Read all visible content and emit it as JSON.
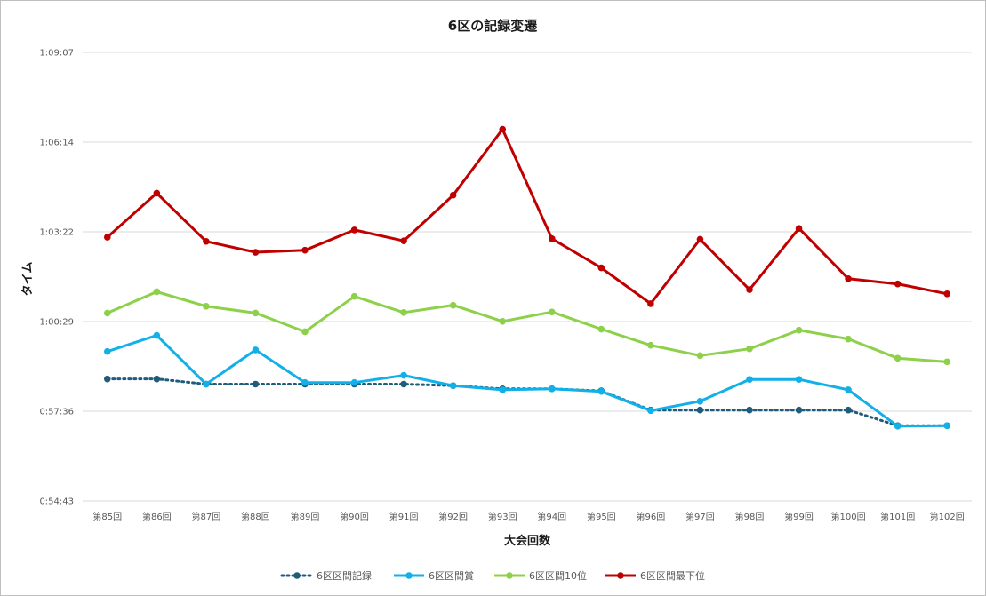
{
  "chart_data": {
    "type": "line",
    "title": "6区の記録変遷",
    "xlabel": "大会回数",
    "ylabel": "タイム",
    "categories": [
      "第85回",
      "第86回",
      "第87回",
      "第88回",
      "第89回",
      "第90回",
      "第91回",
      "第92回",
      "第93回",
      "第94回",
      "第95回",
      "第96回",
      "第97回",
      "第98回",
      "第99回",
      "第100回",
      "第101回",
      "第102回"
    ],
    "y_ticks": [
      "0:54:43",
      "0:57:36",
      "1:00:29",
      "1:03:22",
      "1:06:14",
      "1:09:07"
    ],
    "ylim_seconds": [
      3283,
      4147
    ],
    "grid": true,
    "legend_position": "bottom",
    "series": [
      {
        "name": "6区区間記録",
        "color": "#1f5c7a",
        "style": "dotted",
        "values": [
          3518,
          3518,
          3508,
          3508,
          3508,
          3508,
          3508,
          3505,
          3499,
          3499,
          3495,
          3458,
          3458,
          3458,
          3458,
          3458,
          3428,
          3428
        ]
      },
      {
        "name": "6区区間賞",
        "color": "#12b0e8",
        "style": "solid",
        "values": [
          3571,
          3602,
          3508,
          3574,
          3511,
          3511,
          3525,
          3505,
          3497,
          3499,
          3494,
          3457,
          3475,
          3517,
          3517,
          3497,
          3427,
          3428
        ]
      },
      {
        "name": "6区区間10位",
        "color": "#8dd04a",
        "style": "solid",
        "values": [
          3645,
          3686,
          3658,
          3645,
          3609,
          3677,
          3646,
          3660,
          3629,
          3647,
          3614,
          3583,
          3563,
          3576,
          3612,
          3595,
          3558,
          3551
        ]
      },
      {
        "name": "6区区間最下位",
        "color": "#c00000",
        "style": "solid",
        "values": [
          3791,
          3876,
          3783,
          3762,
          3766,
          3805,
          3784,
          3872,
          3999,
          3788,
          3732,
          3663,
          3787,
          3690,
          3808,
          3711,
          3701,
          3682
        ]
      }
    ]
  }
}
